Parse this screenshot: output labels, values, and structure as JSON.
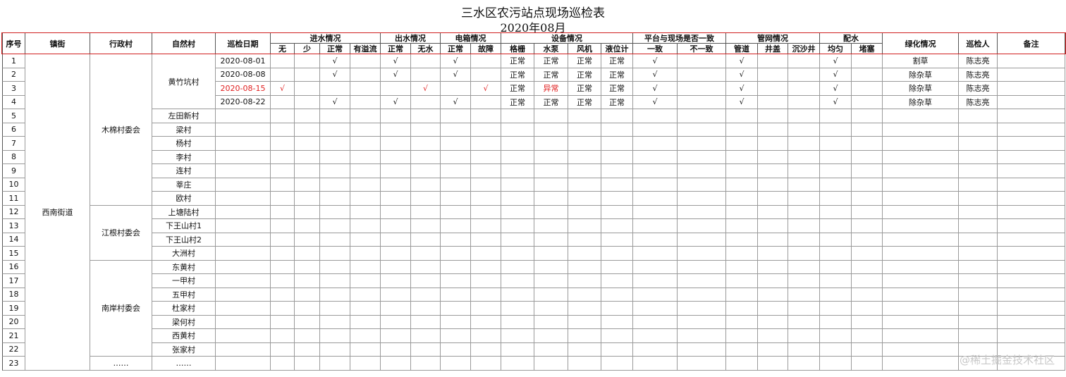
{
  "header": {
    "title": "三水区农污站点现场巡检表",
    "subtitle": "2020年08月"
  },
  "columns": [
    {
      "label": "序号"
    },
    {
      "label": "镇街"
    },
    {
      "label": "行政村"
    },
    {
      "label": "自然村"
    },
    {
      "label": "巡检日期"
    },
    {
      "label": "进水情况",
      "sub": [
        "无",
        "少",
        "正常",
        "有溢流"
      ]
    },
    {
      "label": "出水情况",
      "sub": [
        "正常",
        "无水"
      ]
    },
    {
      "label": "电箱情况",
      "sub": [
        "正常",
        "故障"
      ]
    },
    {
      "label": "设备情况",
      "sub": [
        "格栅",
        "水泵",
        "风机",
        "液位计"
      ]
    },
    {
      "label": "平台与现场是否一致",
      "sub": [
        "一致",
        "不一致"
      ]
    },
    {
      "label": "管网情况",
      "sub": [
        "管道",
        "井盖",
        "沉沙井"
      ]
    },
    {
      "label": "配水",
      "sub": [
        "均匀",
        "堵塞"
      ]
    },
    {
      "label": "绿化情况"
    },
    {
      "label": "巡检人"
    },
    {
      "label": "备注"
    }
  ],
  "town": "西南街道",
  "admin_villages": [
    {
      "name": "木棉村委会",
      "villages": [
        {
          "name": "黄竹坑村",
          "rows": [
            {
              "no": 1,
              "cells": {
                "4": "2020-08-01",
                "7": "√",
                "9": "√",
                "11": "√",
                "13": "正常",
                "14": "正常",
                "15": "正常",
                "16": "正常",
                "17": "√",
                "19": "√",
                "22": "√",
                "24": "割草",
                "25": "陈志亮"
              }
            },
            {
              "no": 2,
              "cells": {
                "4": "2020-08-08",
                "7": "√",
                "9": "√",
                "11": "√",
                "13": "正常",
                "14": "正常",
                "15": "正常",
                "16": "正常",
                "17": "√",
                "19": "√",
                "22": "√",
                "24": "除杂草",
                "25": "陈志亮"
              }
            },
            {
              "no": 3,
              "cells": {
                "4": {
                  "text": "2020-08-15",
                  "color": "#e02020"
                },
                "5": {
                  "text": "√",
                  "color": "#e02020"
                },
                "10": {
                  "text": "√",
                  "color": "#e02020"
                },
                "12": {
                  "text": "√",
                  "color": "#e02020"
                },
                "13": "正常",
                "14": {
                  "text": "异常",
                  "color": "#e02020"
                },
                "15": "正常",
                "16": "正常",
                "17": "√",
                "19": "√",
                "22": "√",
                "24": "除杂草",
                "25": "陈志亮"
              }
            },
            {
              "no": 4,
              "cells": {
                "4": "2020-08-22",
                "7": "√",
                "9": "√",
                "11": "√",
                "13": "正常",
                "14": "正常",
                "15": "正常",
                "16": "正常",
                "17": "√",
                "19": "√",
                "22": "√",
                "24": "除杂草",
                "25": "陈志亮"
              }
            }
          ]
        },
        {
          "name": "左田新村",
          "rows": [
            {
              "no": 5
            }
          ]
        },
        {
          "name": "梁村",
          "rows": [
            {
              "no": 6
            }
          ]
        },
        {
          "name": "杨村",
          "rows": [
            {
              "no": 7
            }
          ]
        },
        {
          "name": "李村",
          "rows": [
            {
              "no": 8
            }
          ]
        },
        {
          "name": "连村",
          "rows": [
            {
              "no": 9
            }
          ]
        },
        {
          "name": "莘庄",
          "rows": [
            {
              "no": 10
            }
          ]
        },
        {
          "name": "欧村",
          "rows": [
            {
              "no": 11
            }
          ]
        }
      ]
    },
    {
      "name": "江根村委会",
      "villages": [
        {
          "name": "上塘陆村",
          "rows": [
            {
              "no": 12
            }
          ]
        },
        {
          "name": "下王山村1",
          "rows": [
            {
              "no": 13
            }
          ]
        },
        {
          "name": "下王山村2",
          "rows": [
            {
              "no": 14
            }
          ]
        },
        {
          "name": "大洲村",
          "rows": [
            {
              "no": 15
            }
          ]
        }
      ]
    },
    {
      "name": "南岸村委会",
      "villages": [
        {
          "name": "东黄村",
          "rows": [
            {
              "no": 16
            }
          ]
        },
        {
          "name": "一甲村",
          "rows": [
            {
              "no": 17
            }
          ]
        },
        {
          "name": "五甲村",
          "rows": [
            {
              "no": 18
            }
          ]
        },
        {
          "name": "杜家村",
          "rows": [
            {
              "no": 19
            }
          ]
        },
        {
          "name": "梁何村",
          "rows": [
            {
              "no": 20
            }
          ]
        },
        {
          "name": "西黄村",
          "rows": [
            {
              "no": 21
            }
          ]
        },
        {
          "name": "张家村",
          "rows": [
            {
              "no": 22
            }
          ]
        }
      ]
    },
    {
      "name": "……",
      "villages": [
        {
          "name": "……",
          "rows": [
            {
              "no": 23
            }
          ]
        }
      ]
    }
  ],
  "watermark": "@稀土掘金技术社区"
}
